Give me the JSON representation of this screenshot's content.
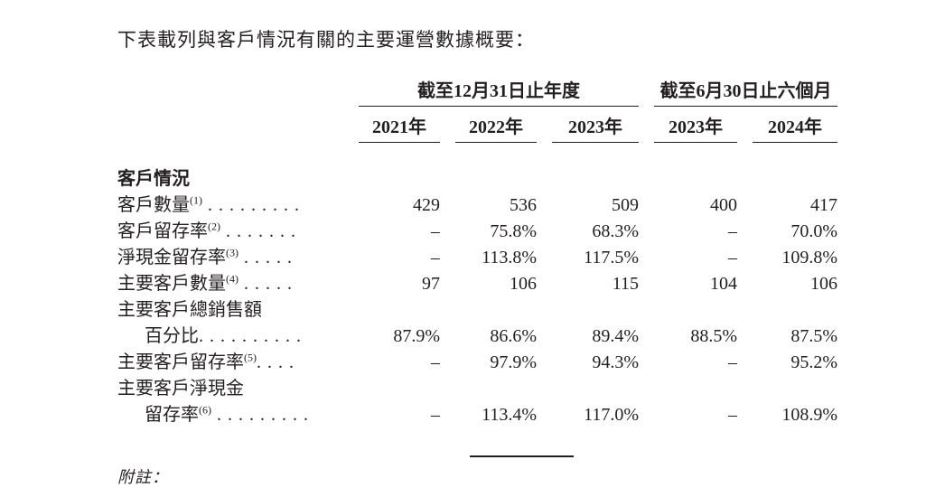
{
  "title": "下表載列與客戶情況有關的主要運營數據概要：",
  "table": {
    "col_groups": [
      {
        "label": "截至12月31日止年度"
      },
      {
        "label": "截至6月30日止六個月"
      }
    ],
    "columns": [
      "2021年",
      "2022年",
      "2023年",
      "2023年",
      "2024年"
    ],
    "section_header": "客戶情況",
    "rows": [
      {
        "label": "客戶數量",
        "sup": "(1)",
        "dots": " . . . . . . . . .",
        "values": [
          "429",
          "536",
          "509",
          "400",
          "417"
        ]
      },
      {
        "label": "客戶留存率",
        "sup": "(2)",
        "dots": " . . . . . . .",
        "values": [
          "–",
          "75.8%",
          "68.3%",
          "–",
          "70.0%"
        ]
      },
      {
        "label": "淨現金留存率",
        "sup": "(3)",
        "dots": " . . . . .",
        "values": [
          "–",
          "113.8%",
          "117.5%",
          "–",
          "109.8%"
        ]
      },
      {
        "label": "主要客戶數量",
        "sup": "(4)",
        "dots": " . . . . .",
        "values": [
          "97",
          "106",
          "115",
          "104",
          "106"
        ]
      },
      {
        "label": "主要客戶總銷售額",
        "sup": "",
        "dots": "",
        "values": [
          "",
          "",
          "",
          "",
          ""
        ]
      },
      {
        "label": "百分比",
        "sup": "",
        "dots": ". . . . . . . . . .",
        "values": [
          "87.9%",
          "86.6%",
          "89.4%",
          "88.5%",
          "87.5%"
        ]
      },
      {
        "label": "主要客戶留存率",
        "sup": "(5)",
        "dots": ". . . .",
        "values": [
          "–",
          "97.9%",
          "94.3%",
          "–",
          "95.2%"
        ]
      },
      {
        "label": "主要客戶淨現金",
        "sup": "",
        "dots": "",
        "values": [
          "",
          "",
          "",
          "",
          ""
        ]
      },
      {
        "label": "留存率",
        "sup": "(6)",
        "dots": " . . . . . . . . .",
        "values": [
          "–",
          "113.4%",
          "117.0%",
          "–",
          "108.9%"
        ]
      }
    ]
  },
  "footnote_label": "附註："
}
